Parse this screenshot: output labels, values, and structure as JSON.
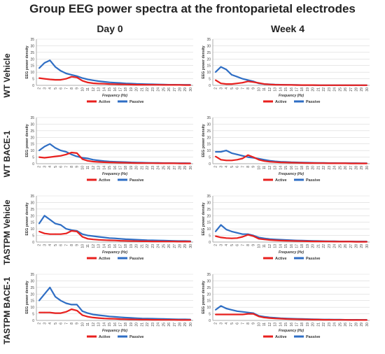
{
  "title": "Group EEG power spectra at the frontoparietal electrodes",
  "columns": [
    "Day 0",
    "Week 4"
  ],
  "rows": [
    "WT Vehicle",
    "WT BACE-1",
    "TASTPM Vehicle",
    "TASTPM BACE-1"
  ],
  "colors": {
    "active": "#e8201e",
    "passive": "#2f6ec4",
    "axis": "#9a9a9a",
    "grid": "#d9d9d9"
  },
  "chart_data": [
    {
      "type": "line",
      "group": "WT Vehicle",
      "timepoint": "Day 0",
      "xlabel": "Frequency (Hz)",
      "ylabel": "EEG power density",
      "x": [
        2,
        3,
        4,
        5,
        6,
        7,
        8,
        9,
        10,
        11,
        12,
        13,
        14,
        15,
        16,
        17,
        18,
        19,
        20,
        21,
        22,
        23,
        24,
        25,
        26,
        27,
        28,
        29,
        30
      ],
      "ylim": [
        0,
        35
      ],
      "yticks": [
        0,
        5,
        10,
        15,
        20,
        25,
        30,
        35
      ],
      "legend": "bottom",
      "series": [
        {
          "name": "Active",
          "values": [
            5.5,
            5,
            4.5,
            4.2,
            4.2,
            5,
            6.5,
            6,
            3.5,
            2.2,
            1.6,
            1.3,
            1.2,
            1,
            0.9,
            0.8,
            0.7,
            0.6,
            0.5,
            0.5,
            0.4,
            0.4,
            0.4,
            0.3,
            0.3,
            0.3,
            0.3,
            0.2,
            0.2
          ]
        },
        {
          "name": "Passive",
          "values": [
            13,
            17,
            19,
            14,
            11,
            9,
            8,
            7,
            5.5,
            4.5,
            3.8,
            3.2,
            2.7,
            2.3,
            2,
            1.8,
            1.5,
            1.3,
            1.1,
            1,
            0.9,
            0.8,
            0.7,
            0.6,
            0.5,
            0.5,
            0.4,
            0.4,
            0.4
          ]
        }
      ]
    },
    {
      "type": "line",
      "group": "WT Vehicle",
      "timepoint": "Week 4",
      "xlabel": "Frequency (Hz)",
      "ylabel": "EEG power density",
      "x": [
        2,
        3,
        4,
        5,
        6,
        7,
        8,
        9,
        10,
        11,
        12,
        13,
        14,
        15,
        16,
        17,
        18,
        19,
        20,
        21,
        22,
        23,
        24,
        25,
        26,
        27,
        28,
        29,
        30
      ],
      "ylim": [
        0,
        35
      ],
      "yticks": [
        0,
        5,
        10,
        15,
        20,
        25,
        30,
        35
      ],
      "legend": "bottom",
      "series": [
        {
          "name": "Active",
          "values": [
            4,
            1.5,
            1,
            1,
            1.5,
            2,
            3,
            2.5,
            1.8,
            1,
            0.7,
            0.5,
            0.4,
            0.3,
            0.3,
            0.2,
            0.2,
            0.2,
            0.2,
            0.1,
            0.1,
            0.1,
            0.1,
            0.1,
            0.1,
            0.1,
            0.1,
            0.1,
            0.1
          ]
        },
        {
          "name": "Passive",
          "values": [
            10,
            14,
            12,
            8,
            6.5,
            5,
            4,
            3,
            1.5,
            1,
            0.8,
            0.6,
            0.5,
            0.4,
            0.3,
            0.3,
            0.2,
            0.2,
            0.2,
            0.1,
            0.1,
            0.1,
            0.1,
            0.1,
            0.1,
            0.1,
            0.1,
            0.1,
            0.1
          ]
        }
      ]
    },
    {
      "type": "line",
      "group": "WT BACE-1",
      "timepoint": "Day 0",
      "xlabel": "Frequency (Hz)",
      "ylabel": "EEG power density",
      "x": [
        2,
        3,
        4,
        5,
        6,
        7,
        8,
        9,
        10,
        11,
        12,
        13,
        14,
        15,
        16,
        17,
        18,
        19,
        20,
        21,
        22,
        23,
        24,
        25,
        26,
        27,
        28,
        29,
        30
      ],
      "ylim": [
        0,
        35
      ],
      "yticks": [
        0,
        5,
        10,
        15,
        20,
        25,
        30,
        35
      ],
      "legend": "bottom",
      "series": [
        {
          "name": "Active",
          "values": [
            5,
            4.5,
            5,
            5.5,
            6,
            7,
            8.5,
            8,
            3.5,
            2.2,
            1.6,
            1.3,
            1.1,
            1,
            0.9,
            0.8,
            0.7,
            0.6,
            0.5,
            0.5,
            0.4,
            0.4,
            0.3,
            0.3,
            0.3,
            0.3,
            0.2,
            0.2,
            0.2
          ]
        },
        {
          "name": "Passive",
          "values": [
            10,
            13,
            15,
            12,
            10,
            9,
            7,
            5.5,
            4.5,
            4,
            3,
            2.5,
            2,
            1.7,
            1.5,
            1.3,
            1.2,
            1,
            0.9,
            0.8,
            0.7,
            0.6,
            0.6,
            0.5,
            0.5,
            0.4,
            0.4,
            0.4,
            0.3
          ]
        }
      ]
    },
    {
      "type": "line",
      "group": "WT BACE-1",
      "timepoint": "Week 4",
      "xlabel": "Frequency (Hz)",
      "ylabel": "EEG power density",
      "x": [
        2,
        3,
        4,
        5,
        6,
        7,
        8,
        9,
        10,
        11,
        12,
        13,
        14,
        15,
        16,
        17,
        18,
        19,
        20,
        21,
        22,
        23,
        24,
        25,
        26,
        27,
        28,
        29,
        30
      ],
      "ylim": [
        0,
        35
      ],
      "yticks": [
        0,
        5,
        10,
        15,
        20,
        25,
        30,
        35
      ],
      "legend": "bottom",
      "series": [
        {
          "name": "Active",
          "values": [
            5.5,
            3,
            2.5,
            2.5,
            3,
            4,
            6.5,
            5,
            3,
            2,
            1.5,
            1.2,
            1,
            0.9,
            0.8,
            0.7,
            0.6,
            0.5,
            0.5,
            0.4,
            0.4,
            0.3,
            0.3,
            0.3,
            0.3,
            0.2,
            0.2,
            0.2,
            0.2
          ]
        },
        {
          "name": "Passive",
          "values": [
            9,
            9,
            10,
            8,
            7,
            6,
            5,
            4.5,
            3.8,
            3,
            2.3,
            1.8,
            1.5,
            1.3,
            1.1,
            1,
            0.9,
            0.8,
            0.7,
            0.6,
            0.6,
            0.5,
            0.5,
            0.4,
            0.4,
            0.4,
            0.4,
            0.3,
            0.3
          ]
        }
      ]
    },
    {
      "type": "line",
      "group": "TASTPM Vehicle",
      "timepoint": "Day 0",
      "xlabel": "Frequency (Hz)",
      "ylabel": "EEG power density",
      "x": [
        2,
        3,
        4,
        5,
        6,
        7,
        8,
        9,
        10,
        11,
        12,
        13,
        14,
        15,
        16,
        17,
        18,
        19,
        20,
        21,
        22,
        23,
        24,
        25,
        26,
        27,
        28,
        29,
        30
      ],
      "ylim": [
        0,
        35
      ],
      "yticks": [
        0,
        5,
        10,
        15,
        20,
        25,
        30,
        35
      ],
      "legend": "bottom",
      "series": [
        {
          "name": "Active",
          "values": [
            8,
            6.5,
            6,
            6,
            6,
            6.5,
            8.5,
            8,
            4,
            2.5,
            2,
            1.7,
            1.5,
            1.3,
            1.2,
            1,
            0.9,
            0.8,
            0.7,
            0.6,
            0.6,
            0.5,
            0.5,
            0.4,
            0.4,
            0.4,
            0.3,
            0.3,
            0.3
          ]
        },
        {
          "name": "Passive",
          "values": [
            14,
            20,
            17,
            14,
            13,
            10,
            9,
            8.5,
            6,
            5,
            4.5,
            4,
            3.5,
            3,
            2.8,
            2.5,
            2.2,
            2,
            1.8,
            1.6,
            1.4,
            1.3,
            1.2,
            1.1,
            1,
            0.9,
            0.8,
            0.8,
            0.7
          ]
        }
      ]
    },
    {
      "type": "line",
      "group": "TASTPM Vehicle",
      "timepoint": "Week 4",
      "xlabel": "Frequency (Hz)",
      "ylabel": "EEG power density",
      "x": [
        2,
        3,
        4,
        5,
        6,
        7,
        8,
        9,
        10,
        11,
        12,
        13,
        14,
        15,
        16,
        17,
        18,
        19,
        20,
        21,
        22,
        23,
        24,
        25,
        26,
        27,
        28,
        29,
        30
      ],
      "ylim": [
        0,
        35
      ],
      "yticks": [
        0,
        5,
        10,
        15,
        20,
        25,
        30,
        35
      ],
      "legend": "bottom",
      "series": [
        {
          "name": "Active",
          "values": [
            4.5,
            3.5,
            3,
            2.8,
            3,
            4,
            5.5,
            4.5,
            2.5,
            2,
            1.6,
            1.3,
            1.1,
            1,
            0.9,
            0.8,
            0.7,
            0.6,
            0.5,
            0.5,
            0.4,
            0.4,
            0.3,
            0.3,
            0.3,
            0.3,
            0.2,
            0.2,
            0.2
          ]
        },
        {
          "name": "Passive",
          "values": [
            8,
            13,
            9.5,
            8,
            7,
            6,
            6,
            5,
            3.5,
            2.8,
            2.3,
            2,
            1.8,
            1.6,
            1.4,
            1.2,
            1.1,
            1,
            0.9,
            0.8,
            0.7,
            0.6,
            0.6,
            0.5,
            0.5,
            0.5,
            0.4,
            0.4,
            0.4
          ]
        }
      ]
    },
    {
      "type": "line",
      "group": "TASTPM BACE-1",
      "timepoint": "Day 0",
      "xlabel": "Frequency (Hz)",
      "ylabel": "EEG power density",
      "x": [
        2,
        3,
        4,
        5,
        6,
        7,
        8,
        9,
        10,
        11,
        12,
        13,
        14,
        15,
        16,
        17,
        18,
        19,
        20,
        21,
        22,
        23,
        24,
        25,
        26,
        27,
        28,
        29,
        30
      ],
      "ylim": [
        0,
        35
      ],
      "yticks": [
        0,
        5,
        10,
        15,
        20,
        25,
        30,
        35
      ],
      "legend": "bottom",
      "series": [
        {
          "name": "Active",
          "values": [
            6,
            6,
            6,
            5.5,
            5.5,
            6.5,
            8.5,
            7.5,
            4,
            2.8,
            2.2,
            1.8,
            1.5,
            1.3,
            1.2,
            1,
            0.9,
            0.8,
            0.7,
            0.6,
            0.6,
            0.5,
            0.5,
            0.4,
            0.4,
            0.4,
            0.3,
            0.3,
            0.3
          ]
        },
        {
          "name": "Passive",
          "values": [
            15,
            20,
            25,
            18,
            15,
            13,
            12,
            12,
            7,
            5.5,
            4.5,
            4,
            3.5,
            3,
            2.7,
            2.4,
            2.1,
            1.9,
            1.7,
            1.5,
            1.4,
            1.3,
            1.2,
            1.1,
            1,
            0.9,
            0.8,
            0.8,
            0.7
          ]
        }
      ]
    },
    {
      "type": "line",
      "group": "TASTPM BACE-1",
      "timepoint": "Week 4",
      "xlabel": "Frequency (Hz)",
      "ylabel": "EEG power density",
      "x": [
        2,
        3,
        4,
        5,
        6,
        7,
        8,
        9,
        10,
        11,
        12,
        13,
        14,
        15,
        16,
        17,
        18,
        19,
        20,
        21,
        22,
        23,
        24,
        25,
        26,
        27,
        28,
        29,
        30
      ],
      "ylim": [
        0,
        35
      ],
      "yticks": [
        0,
        5,
        10,
        15,
        20,
        25,
        30,
        35
      ],
      "legend": "bottom",
      "series": [
        {
          "name": "Active",
          "values": [
            4.5,
            4.5,
            4.5,
            4.5,
            4.5,
            4.5,
            5,
            5,
            3,
            2.2,
            1.8,
            1.5,
            1.3,
            1.1,
            1,
            0.9,
            0.8,
            0.7,
            0.6,
            0.6,
            0.5,
            0.5,
            0.4,
            0.4,
            0.4,
            0.3,
            0.3,
            0.3,
            0.3
          ]
        },
        {
          "name": "Passive",
          "values": [
            8,
            11,
            9,
            8,
            7,
            6.5,
            6,
            5.5,
            3.5,
            2.8,
            2.3,
            2,
            1.7,
            1.5,
            1.3,
            1.2,
            1.1,
            1,
            0.9,
            0.8,
            0.7,
            0.7,
            0.6,
            0.6,
            0.5,
            0.5,
            0.5,
            0.4,
            0.4
          ]
        }
      ]
    }
  ]
}
